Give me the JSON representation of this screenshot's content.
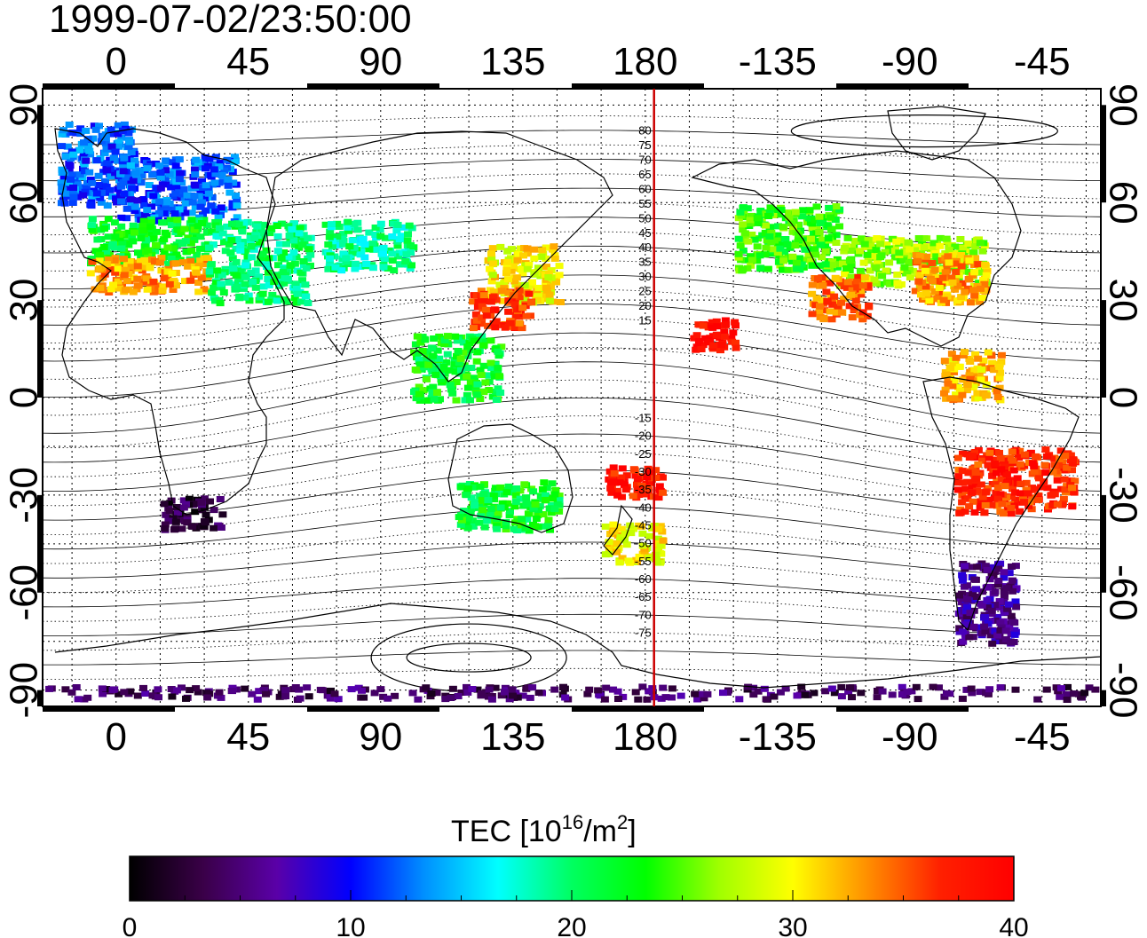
{
  "timestamp": "1999-07-02/23:50:00",
  "map": {
    "lon_labels_top": [
      "0",
      "45",
      "90",
      "135",
      "180",
      "-135",
      "-90",
      "-45"
    ],
    "lon_labels_bottom": [
      "0",
      "45",
      "90",
      "135",
      "180",
      "-135",
      "-90",
      "-45"
    ],
    "lat_labels_left": [
      "90",
      "60",
      "30",
      "0",
      "-30",
      "-60",
      "-90"
    ],
    "lat_labels_right": [
      "90",
      "60",
      "30",
      "0",
      "-30",
      "-60",
      "-90"
    ],
    "lon_range": [
      -25,
      335
    ],
    "lat_range": [
      -95,
      95
    ],
    "grid": "dotted 15° lines",
    "terminator_longitude": 183,
    "terminator_color": "#cc0000",
    "contour_labels_north": [
      "80",
      "75",
      "70",
      "65",
      "60",
      "55",
      "50",
      "45",
      "40",
      "35",
      "30",
      "25",
      "20",
      "15"
    ],
    "contour_labels_south": [
      "-15",
      "-20",
      "-25",
      "-30",
      "-35",
      "-40",
      "-45",
      "-50",
      "-55",
      "-60",
      "-65",
      "-70",
      "-75"
    ]
  },
  "colorbar": {
    "label_main": "TEC  [10",
    "label_exp1": "16",
    "label_mid": "/m",
    "label_exp2": "2",
    "label_end": "]",
    "ticks": [
      "0",
      "10",
      "20",
      "30",
      "40"
    ],
    "range": [
      0,
      40
    ],
    "colors": [
      "#000000",
      "#3a0048",
      "#5a00a8",
      "#0000ff",
      "#0090ff",
      "#00ffff",
      "#00ff60",
      "#00ff00",
      "#a0ff00",
      "#ffff00",
      "#ff9000",
      "#ff2000",
      "#ff0000"
    ]
  },
  "chart_data": {
    "type": "heatmap",
    "title": "1999-07-02/23:50:00",
    "value_label": "TEC [10^16/m^2]",
    "value_range": [
      0,
      40
    ],
    "regions": [
      {
        "lon": [
          -20,
          5
        ],
        "lat": [
          60,
          85
        ],
        "tec": 12
      },
      {
        "lon": [
          0,
          40
        ],
        "lat": [
          55,
          75
        ],
        "tec": 12
      },
      {
        "lon": [
          -10,
          30
        ],
        "lat": [
          42,
          56
        ],
        "tec": 22
      },
      {
        "lon": [
          -10,
          30
        ],
        "lat": [
          33,
          44
        ],
        "tec": 33
      },
      {
        "lon": [
          30,
          65
        ],
        "lat": [
          30,
          55
        ],
        "tec": 20
      },
      {
        "lon": [
          70,
          100
        ],
        "lat": [
          40,
          55
        ],
        "tec": 19
      },
      {
        "lon": [
          125,
          150
        ],
        "lat": [
          30,
          48
        ],
        "tec": 30
      },
      {
        "lon": [
          120,
          140
        ],
        "lat": [
          22,
          34
        ],
        "tec": 36
      },
      {
        "lon": [
          100,
          130
        ],
        "lat": [
          0,
          20
        ],
        "tec": 22
      },
      {
        "lon": [
          210,
          245
        ],
        "lat": [
          40,
          60
        ],
        "tec": 24
      },
      {
        "lon": [
          245,
          295
        ],
        "lat": [
          35,
          50
        ],
        "tec": 27
      },
      {
        "lon": [
          235,
          255
        ],
        "lat": [
          25,
          38
        ],
        "tec": 34
      },
      {
        "lon": [
          270,
          295
        ],
        "lat": [
          30,
          45
        ],
        "tec": 33
      },
      {
        "lon": [
          195,
          210
        ],
        "lat": [
          15,
          25
        ],
        "tec": 39
      },
      {
        "lon": [
          280,
          300
        ],
        "lat": [
          0,
          15
        ],
        "tec": 32
      },
      {
        "lon": [
          285,
          325
        ],
        "lat": [
          -35,
          -15
        ],
        "tec": 37
      },
      {
        "lon": [
          285,
          305
        ],
        "lat": [
          -75,
          -50
        ],
        "tec": 6
      },
      {
        "lon": [
          165,
          185
        ],
        "lat": [
          -30,
          -20
        ],
        "tec": 38
      },
      {
        "lon": [
          165,
          185
        ],
        "lat": [
          -50,
          -38
        ],
        "tec": 30
      },
      {
        "lon": [
          115,
          150
        ],
        "lat": [
          -40,
          -25
        ],
        "tec": 22
      },
      {
        "lon": [
          15,
          35
        ],
        "lat": [
          -40,
          -30
        ],
        "tec": 3
      },
      {
        "lon": [
          -25,
          335
        ],
        "lat": [
          -92,
          -88
        ],
        "tec": 4
      }
    ]
  }
}
